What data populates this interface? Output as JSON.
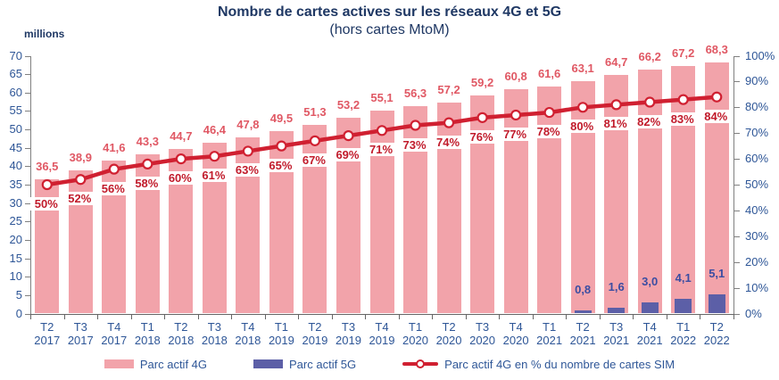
{
  "header": {
    "title": "Nombre de cartes actives sur les réseaux 4G et 5G",
    "subtitle": "(hors cartes MtoM)"
  },
  "axes": {
    "left_unit_label": "millions"
  },
  "chart_data": {
    "type": "bar",
    "title": "Nombre de cartes actives sur les réseaux 4G et 5G (hors cartes MtoM)",
    "categories": [
      "T2 2017",
      "T3 2017",
      "T4 2017",
      "T1 2018",
      "T2 2018",
      "T3 2018",
      "T4 2018",
      "T1 2019",
      "T2 2019",
      "T3 2019",
      "T4 2019",
      "T1 2020",
      "T2 2020",
      "T3 2020",
      "T4 2020",
      "T1 2021",
      "T2 2021",
      "T3 2021",
      "T4 2021",
      "T1 2022",
      "T2 2022"
    ],
    "series": [
      {
        "name": "Parc actif 4G",
        "type": "bar",
        "axis": "left",
        "color": "#F2A3AA",
        "label_color": "#E05864",
        "values": [
          36.5,
          38.9,
          41.6,
          43.3,
          44.7,
          46.4,
          47.8,
          49.5,
          51.3,
          53.2,
          55.1,
          56.3,
          57.2,
          59.2,
          60.8,
          61.6,
          63.1,
          64.7,
          66.2,
          67.2,
          68.3
        ]
      },
      {
        "name": "Parc actif 5G",
        "type": "bar",
        "axis": "left",
        "color": "#5C5FA7",
        "label_color": "#3B4DA2",
        "values": [
          null,
          null,
          null,
          null,
          null,
          null,
          null,
          null,
          null,
          null,
          null,
          null,
          null,
          null,
          null,
          null,
          0.8,
          1.6,
          3.0,
          4.1,
          5.1
        ]
      },
      {
        "name": "Parc actif 4G en % du nombre de cartes SIM",
        "type": "line",
        "axis": "right",
        "color": "#D02031",
        "marker": "white-circle",
        "label_color": "#C11B2B",
        "values": [
          50,
          52,
          56,
          58,
          60,
          61,
          63,
          65,
          67,
          69,
          71,
          73,
          74,
          76,
          77,
          78,
          80,
          81,
          82,
          83,
          84
        ]
      }
    ],
    "y_left": {
      "label": "millions",
      "min": 0,
      "max": 70,
      "step": 5
    },
    "y_right": {
      "min": 0,
      "max": 100,
      "step": 10,
      "format": "percent"
    },
    "grid": false,
    "legend_position": "bottom",
    "colors": {
      "title": "#1F3864",
      "axis_text": "#2E5697",
      "axis_line": "#808080",
      "bar_4g": "#F2A3AA",
      "bar_5g": "#5C5FA7",
      "line": "#D02031",
      "pct_label": "#C11B2B",
      "value_label_4g": "#E05864",
      "value_label_5g": "#3B4DA2"
    }
  }
}
